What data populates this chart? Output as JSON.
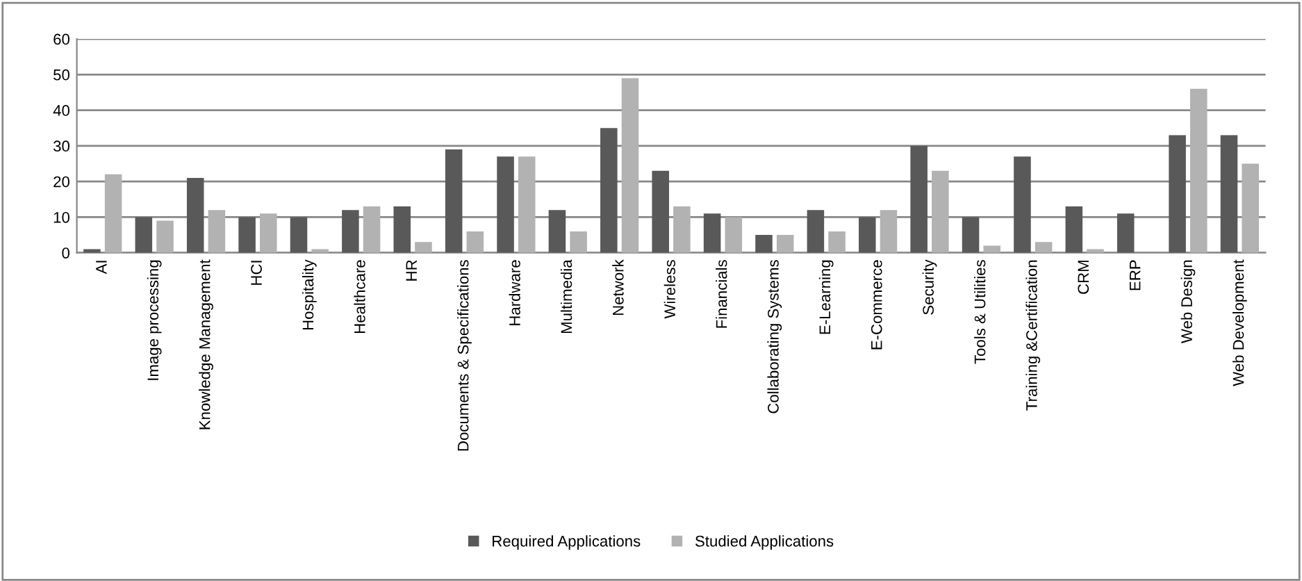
{
  "chart_data": {
    "type": "bar",
    "categories": [
      "AI",
      "Image processing",
      "Knowledge Management",
      "HCI",
      "Hospitality",
      "Healthcare",
      "HR",
      "Documents & Specifications",
      "Hardware",
      "Multimedia",
      "Network",
      "Wireless",
      "Financials",
      "Collaborating Systems",
      "E-Learning",
      "E-Commerce",
      "Security",
      "Tools & Utilities",
      "Training &Certification",
      "CRM",
      "ERP",
      "Web Design",
      "Web Development"
    ],
    "series": [
      {
        "name": "Required Applications",
        "color": "#595959",
        "values": [
          1,
          10,
          21,
          10,
          10,
          12,
          13,
          29,
          27,
          12,
          35,
          23,
          11,
          5,
          12,
          10,
          30,
          10,
          27,
          13,
          11,
          33,
          33
        ]
      },
      {
        "name": "Studied Applications",
        "color": "#b2b2b2",
        "values": [
          22,
          9,
          12,
          11,
          1,
          13,
          3,
          6,
          27,
          6,
          49,
          13,
          10,
          5,
          6,
          12,
          23,
          2,
          3,
          1,
          0,
          46,
          25
        ]
      }
    ],
    "ylim": [
      0,
      60
    ],
    "yticks": [
      0,
      10,
      20,
      30,
      40,
      50,
      60
    ],
    "grid": "y",
    "legend": "bottom"
  }
}
